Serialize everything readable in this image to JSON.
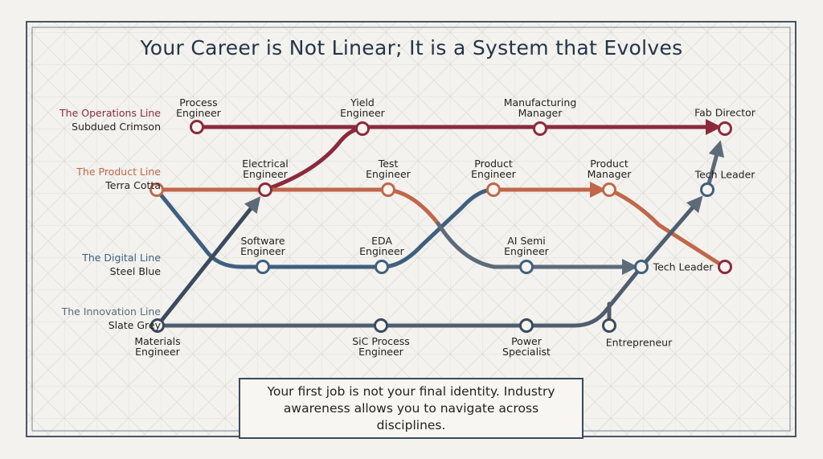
{
  "title": "Your Career is Not Linear; It is a System that Evolves",
  "lines": [
    {
      "name": "The Operations Line",
      "color_name": "Subdued Crimson"
    },
    {
      "name": "The Product Line",
      "color_name": "Terra Cotta"
    },
    {
      "name": "The Digital Line",
      "color_name": "Steel Blue"
    },
    {
      "name": "The Innovation Line",
      "color_name": "Slate Grey"
    }
  ],
  "stations": [
    {
      "label": "Process Engineer"
    },
    {
      "label": "Yield Engineer"
    },
    {
      "label": "Manufacturing Manager"
    },
    {
      "label": "Fab Director"
    },
    {
      "label": "Electrical Engineer"
    },
    {
      "label": "Test Engineer"
    },
    {
      "label": "Product Engineer"
    },
    {
      "label": "Product Manager"
    },
    {
      "label": "Tech Leader"
    },
    {
      "label": "Software Engineer"
    },
    {
      "label": "EDA Engineer"
    },
    {
      "label": "AI Semi Engineer"
    },
    {
      "label": "Tech Leader"
    },
    {
      "label": "Materials Engineer"
    },
    {
      "label": "SiC Process Engineer"
    },
    {
      "label": "Power Specialist"
    },
    {
      "label": "Entrepreneur"
    }
  ],
  "note": "Your first job is not your final identity. Industry awareness allows you to navigate across disciplines."
}
